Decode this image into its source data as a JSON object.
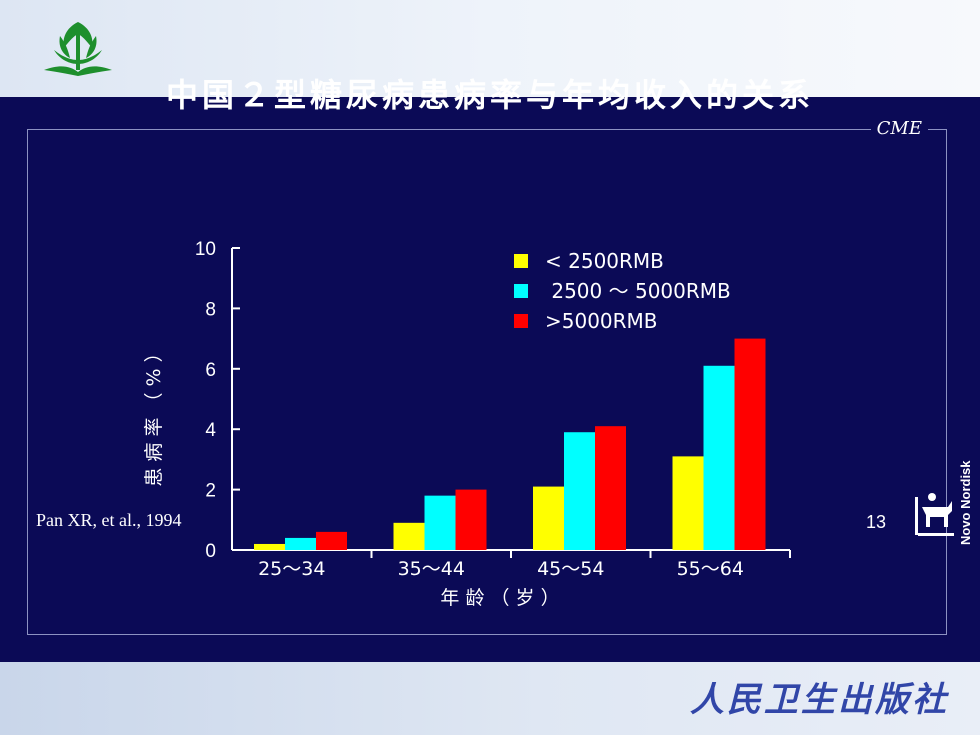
{
  "cme_label": "CME",
  "publisher": "人民卫生出版社",
  "citation": "Pan XR, et al., 1994",
  "page_number": "13",
  "brand": "Novo Nordisk",
  "colors": {
    "background": "#0b0a56",
    "series1": "#ffff00",
    "series2": "#00ffff",
    "series3": "#ff0000"
  },
  "chart_data": {
    "type": "bar",
    "title": "中国２型糖尿病患病率与年均收入的关系",
    "xlabel": "年 龄 （ 岁 ）",
    "ylabel": "患 病 率 （ % ）",
    "categories": [
      "25～34",
      "35～44",
      "45～54",
      "55～64"
    ],
    "ylim": [
      0,
      10
    ],
    "yticks": [
      "0",
      "2",
      "4",
      "6",
      "8",
      "10"
    ],
    "legend_position": "top-right",
    "series": [
      {
        "name": "< 2500RMB",
        "color": "#ffff00",
        "values": [
          0.2,
          0.9,
          2.1,
          3.1
        ]
      },
      {
        "name": " 2500 ～ 5000RMB",
        "color": "#00ffff",
        "values": [
          0.4,
          1.8,
          3.9,
          6.1
        ]
      },
      {
        "name": ">5000RMB",
        "color": "#ff0000",
        "values": [
          0.6,
          2.0,
          4.1,
          7.0
        ]
      }
    ]
  }
}
